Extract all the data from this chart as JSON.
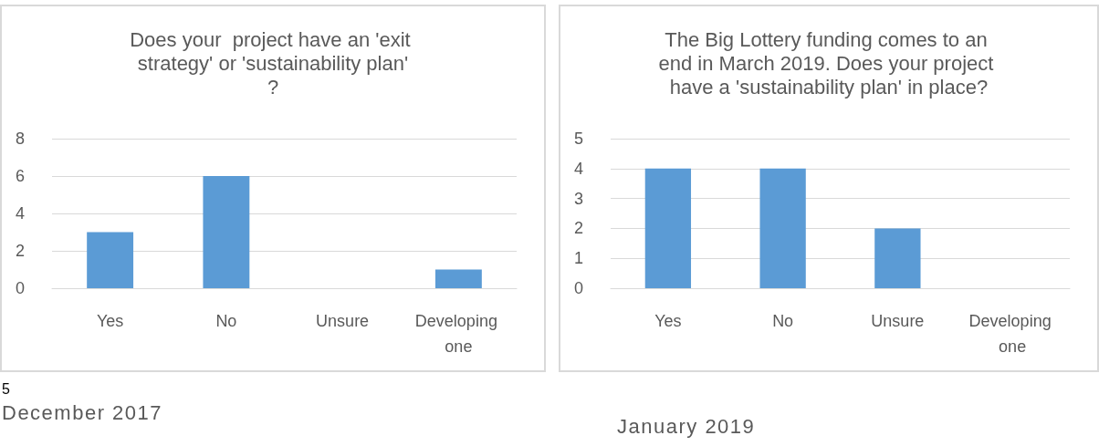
{
  "chart_data": [
    {
      "type": "bar",
      "title": "Does your  project have an 'exit strategy' or 'sustainability plan'?",
      "categories": [
        "Yes",
        "No",
        "Unsure",
        "Developing one"
      ],
      "values": [
        3,
        6,
        0,
        1
      ],
      "color": "#5b9bd5",
      "ylim": [
        0,
        8
      ],
      "yticks": [
        0,
        2,
        4,
        6,
        8
      ],
      "grid": "y",
      "annotations": [
        "5",
        "December 2017"
      ]
    },
    {
      "type": "bar",
      "title": "The Big Lottery funding comes to an end in March 2019. Does your project have a 'sustainability plan' in place?",
      "categories": [
        "Yes",
        "No",
        "Unsure",
        "Developing one"
      ],
      "values": [
        4,
        4,
        2,
        0
      ],
      "color": "#5b9bd5",
      "ylim": [
        0,
        5
      ],
      "yticks": [
        0,
        1,
        2,
        3,
        4,
        5
      ],
      "grid": "y",
      "annotations": [
        "January 2019"
      ]
    }
  ]
}
